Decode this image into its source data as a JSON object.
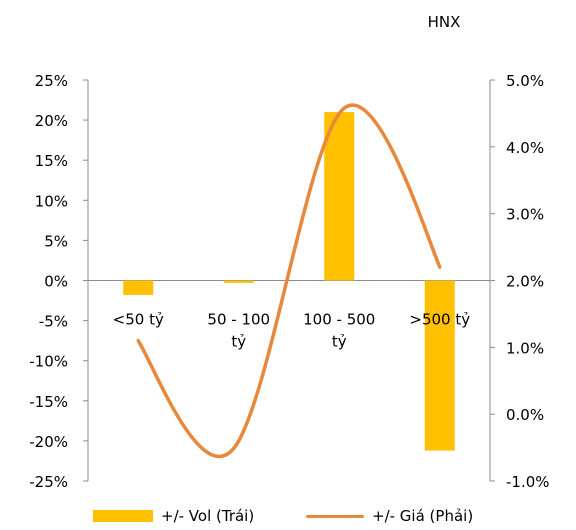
{
  "chart_data": {
    "type": "bar+line",
    "title": "HNX",
    "categories": [
      [
        "<50 tỷ"
      ],
      [
        "50 - 100",
        "tỷ"
      ],
      [
        "100 - 500",
        "tỷ"
      ],
      [
        ">500 tỷ"
      ]
    ],
    "y_left": {
      "ticks": [
        "25%",
        "20%",
        "15%",
        "10%",
        "5%",
        "0%",
        "-5%",
        "-10%",
        "-15%",
        "-20%",
        "-25%"
      ],
      "range": [
        -0.25,
        0.25
      ]
    },
    "y_right": {
      "ticks": [
        "5.0%",
        "4.0%",
        "3.0%",
        "2.0%",
        "1.0%",
        "0.0%",
        "-1.0%"
      ],
      "range": [
        -0.01,
        0.05
      ]
    },
    "series": [
      {
        "name": "+/- Vol (Trái)",
        "type": "bar",
        "axis": "left",
        "color": "#FFC000",
        "values": [
          -0.018,
          -0.003,
          0.21,
          -0.212
        ]
      },
      {
        "name": "+/- Giá (Phải)",
        "type": "line",
        "axis": "right",
        "color": "#E7883C",
        "values": [
          0.011,
          -0.004,
          0.045,
          0.022
        ]
      }
    ],
    "grid": false,
    "legend": "bottom"
  }
}
